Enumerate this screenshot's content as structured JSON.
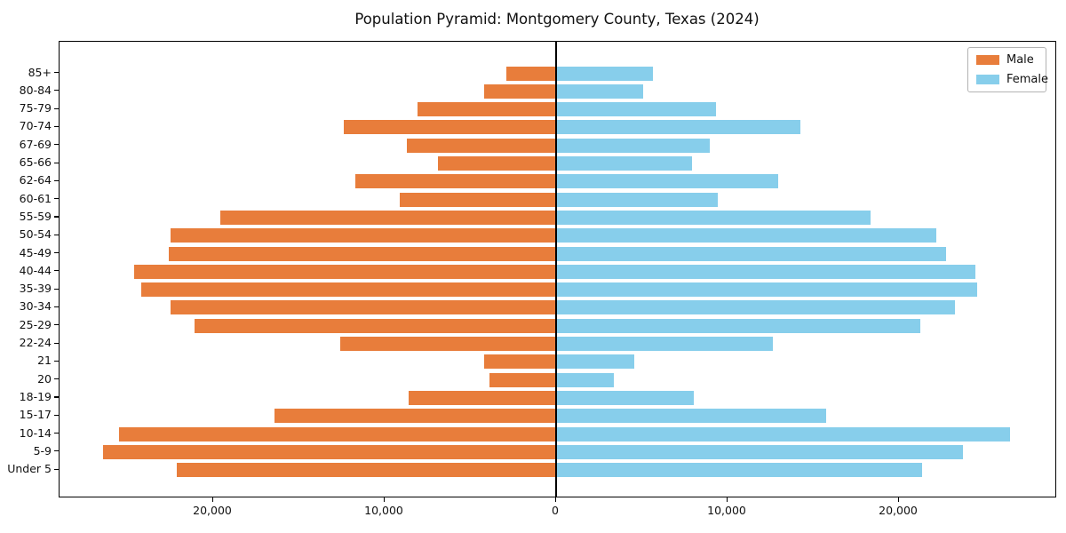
{
  "title": "Population Pyramid: Montgomery County, Texas (2024)",
  "legend": {
    "position": "upper-right",
    "items": [
      {
        "label": "Male",
        "color": "#e87d3b"
      },
      {
        "label": "Female",
        "color": "#87ceeb"
      }
    ]
  },
  "chart_data": {
    "type": "bar",
    "subtype": "population-pyramid",
    "title": "Population Pyramid: Montgomery County, Texas (2024)",
    "xlabel": "",
    "ylabel": "",
    "grid": false,
    "zero_line": true,
    "legend_position": "upper right",
    "categories_top_to_bottom": [
      "85+",
      "80-84",
      "75-79",
      "70-74",
      "67-69",
      "65-66",
      "62-64",
      "60-61",
      "55-59",
      "50-54",
      "45-49",
      "40-44",
      "35-39",
      "30-34",
      "25-29",
      "22-24",
      "21",
      "20",
      "18-19",
      "15-17",
      "10-14",
      "5-9",
      "Under 5"
    ],
    "series": [
      {
        "name": "Male",
        "side": "left",
        "color": "#e87d3b",
        "values": [
          2900,
          4200,
          8100,
          12400,
          8700,
          6900,
          11700,
          9100,
          19600,
          22500,
          22600,
          24600,
          24200,
          22500,
          21100,
          12600,
          4200,
          3900,
          8600,
          16400,
          25500,
          26400,
          22100
        ]
      },
      {
        "name": "Female",
        "side": "right",
        "color": "#87ceeb",
        "values": [
          5600,
          5000,
          9300,
          14200,
          8900,
          7900,
          12900,
          9400,
          18300,
          22100,
          22700,
          24400,
          24500,
          23200,
          21200,
          12600,
          4500,
          3300,
          8000,
          15700,
          26400,
          23700,
          21300
        ]
      }
    ],
    "x_ticks": [
      -20000,
      -10000,
      0,
      10000,
      20000
    ],
    "x_tick_labels": [
      "20,000",
      "10,000",
      "0",
      "10,000",
      "20,000"
    ],
    "xlim": [
      -29050,
      29050
    ]
  }
}
